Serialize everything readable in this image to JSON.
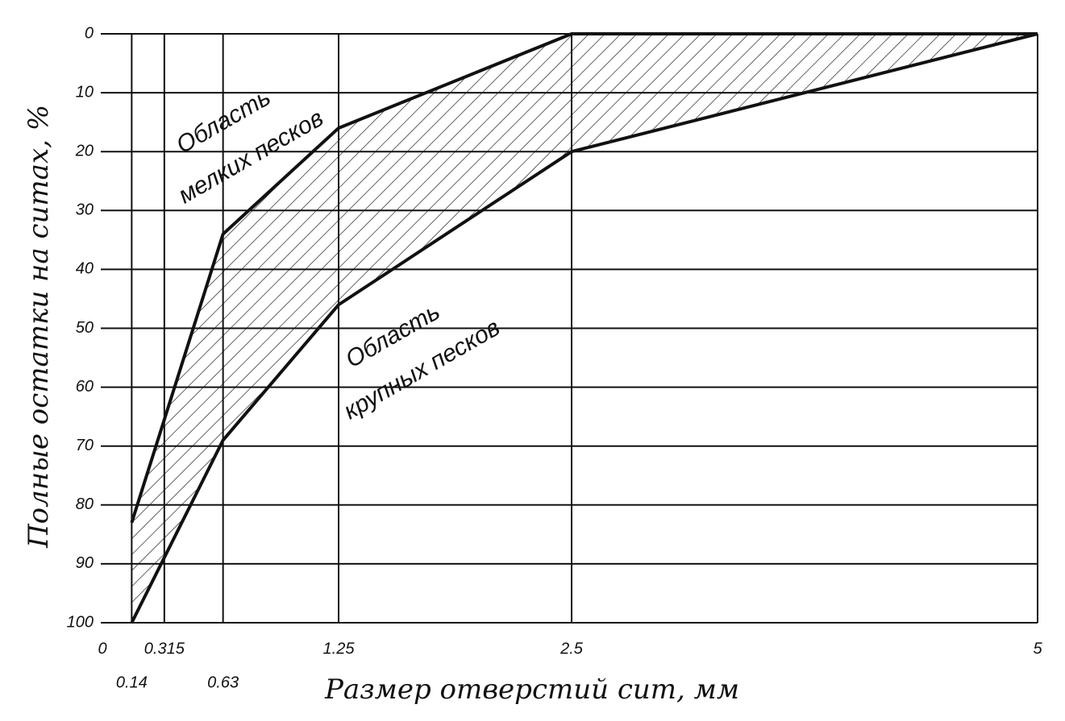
{
  "chart_data": {
    "type": "area-band",
    "x_label": "Размер отверстий сит, мм",
    "y_label": "Полные остатки на ситах, %",
    "x": [
      0.14,
      0.63,
      1.25,
      2.5,
      5
    ],
    "series": [
      {
        "color": "#111111",
        "values": [
          83,
          34,
          16,
          0,
          0
        ]
      },
      {
        "color": "#111111",
        "values": [
          100,
          69,
          46,
          20,
          0
        ]
      }
    ],
    "annotations": [
      "Область",
      "мелких песков",
      "Область",
      "крупных песков"
    ],
    "xlim": [
      0,
      5
    ],
    "xticks": [
      0,
      0.14,
      0.315,
      0.63,
      1.25,
      2.5,
      5
    ],
    "ylim": [
      0,
      100
    ],
    "yticks": [
      0,
      10,
      20,
      30,
      40,
      50,
      60,
      70,
      80,
      90,
      100
    ],
    "y_inverted": true,
    "grid": true
  }
}
